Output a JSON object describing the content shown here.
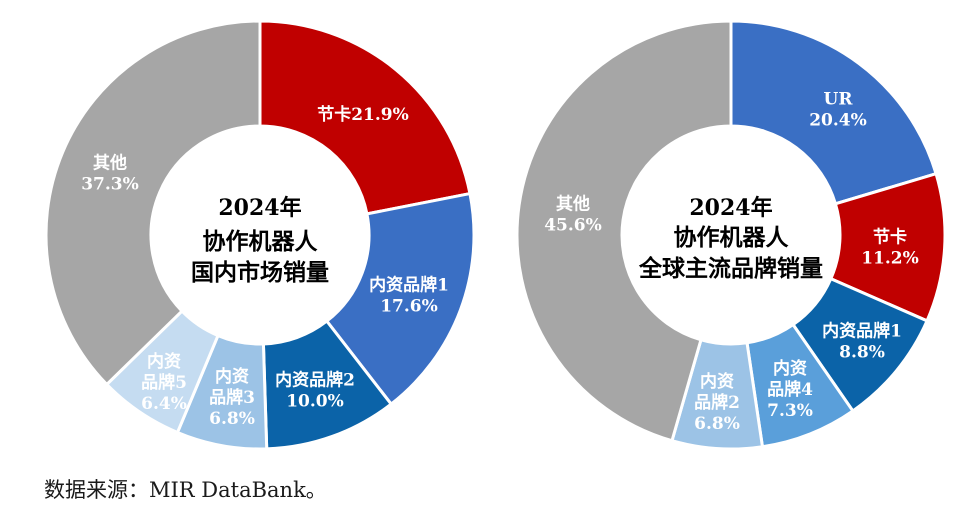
{
  "chart_data": [
    {
      "type": "pie",
      "variant": "donut",
      "center_label": [
        "2024年",
        "协作机器人",
        "国内市场销量"
      ],
      "slices": [
        {
          "name": "节卡",
          "value": 21.9,
          "label_lines": [
            "节卡21.9%"
          ],
          "color": "#c00000",
          "text_color": "#ffffff"
        },
        {
          "name": "内资品牌1",
          "value": 17.6,
          "label_lines": [
            "内资品牌1",
            "17.6%"
          ],
          "color": "#3a6fc4",
          "text_color": "#ffffff"
        },
        {
          "name": "内资品牌2",
          "value": 10.0,
          "label_lines": [
            "内资品牌2",
            "10.0%"
          ],
          "color": "#0b63a8",
          "text_color": "#ffffff"
        },
        {
          "name": "内资品牌3",
          "value": 6.8,
          "label_lines": [
            "内资",
            "品牌3",
            "6.8%"
          ],
          "color": "#9cc3e6",
          "text_color": "#ffffff"
        },
        {
          "name": "内资品牌5",
          "value": 6.4,
          "label_lines": [
            "内资",
            "品牌5",
            "6.4%"
          ],
          "color": "#c5dcf1",
          "text_color": "#ffffff"
        },
        {
          "name": "其他",
          "value": 37.3,
          "label_lines": [
            "其他",
            "37.3%"
          ],
          "color": "#a6a6a6",
          "text_color": "#ffffff"
        }
      ]
    },
    {
      "type": "pie",
      "variant": "donut",
      "center_label": [
        "2024年",
        "协作机器人",
        "全球主流品牌销量"
      ],
      "slices": [
        {
          "name": "UR",
          "value": 20.4,
          "label_lines": [
            "UR",
            "20.4%"
          ],
          "color": "#3a6fc4",
          "text_color": "#ffffff"
        },
        {
          "name": "节卡",
          "value": 11.2,
          "label_lines": [
            "节卡",
            "11.2%"
          ],
          "color": "#c00000",
          "text_color": "#ffffff"
        },
        {
          "name": "内资品牌1",
          "value": 8.8,
          "label_lines": [
            "内资品牌1",
            "8.8%"
          ],
          "color": "#0b63a8",
          "text_color": "#ffffff"
        },
        {
          "name": "内资品牌4",
          "value": 7.3,
          "label_lines": [
            "内资",
            "品牌4",
            "7.3%"
          ],
          "color": "#5a9fda",
          "text_color": "#ffffff"
        },
        {
          "name": "内资品牌2",
          "value": 6.8,
          "label_lines": [
            "内资",
            "品牌2",
            "6.8%"
          ],
          "color": "#9cc3e6",
          "text_color": "#ffffff"
        },
        {
          "name": "其他",
          "value": 45.6,
          "label_lines": [
            "其他",
            "45.6%"
          ],
          "color": "#a6a6a6",
          "text_color": "#ffffff"
        }
      ]
    }
  ],
  "source_note": "数据来源：MIR DataBank。"
}
